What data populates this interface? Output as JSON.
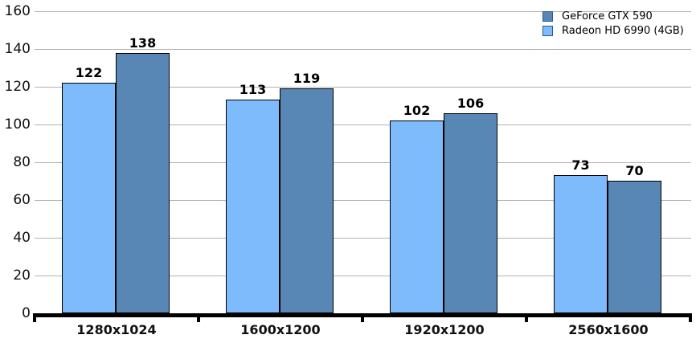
{
  "chart_data": {
    "type": "bar",
    "title": "",
    "xlabel": "",
    "ylabel": "",
    "categories": [
      "1280x1024",
      "1600x1200",
      "1920x1200",
      "2560x1600"
    ],
    "series": [
      {
        "name": "Radeon HD 6990 (4GB)",
        "color": "#7EBBFC",
        "border_color": "#000000",
        "values": [
          122,
          113,
          102,
          73
        ]
      },
      {
        "name": "GeForce GTX 590",
        "color": "#5886B5",
        "border_color": "#000000",
        "values": [
          138,
          119,
          106,
          70
        ]
      }
    ],
    "bar_labels_shown": true,
    "ylim": [
      0,
      160
    ],
    "ytick_step": 20,
    "yticks": [
      0,
      20,
      40,
      60,
      80,
      100,
      120,
      140,
      160
    ],
    "grid": true,
    "legend": {
      "position": "top-right",
      "items": [
        {
          "label": "GeForce GTX 590",
          "color": "#5886B5"
        },
        {
          "label": "Radeon HD 6990 (4GB)",
          "color": "#7EBBFC"
        }
      ]
    },
    "colors": {
      "gridline": "#b2b2b2",
      "axis": "#000000",
      "text": "#111111",
      "legend_swatch_border": "#2d5a87"
    }
  }
}
